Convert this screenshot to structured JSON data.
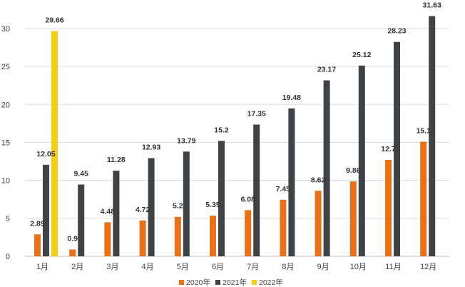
{
  "chart_data": {
    "type": "bar",
    "title": "",
    "xlabel": "",
    "ylabel": "",
    "categories": [
      "1月",
      "2月",
      "3月",
      "4月",
      "5月",
      "6月",
      "7月",
      "8月",
      "9月",
      "10月",
      "11月",
      "12月"
    ],
    "series": [
      {
        "name": "2020年",
        "color": "#e8711a",
        "values": [
          2.89,
          0.9,
          4.48,
          4.72,
          5.2,
          5.35,
          6.08,
          7.45,
          8.62,
          9.86,
          12.7,
          15.1
        ],
        "labels": [
          "2.89",
          "0.9",
          "4.48",
          "4.72",
          "5.2",
          "5.35",
          "6.08",
          "7.45",
          "8.62",
          "9.86",
          "12.7",
          "15.1"
        ]
      },
      {
        "name": "2021年",
        "color": "#404346",
        "values": [
          12.05,
          9.45,
          11.28,
          12.93,
          13.79,
          15.2,
          17.35,
          19.48,
          23.17,
          25.12,
          28.23,
          31.63
        ],
        "labels": [
          "12.05",
          "9.45",
          "11.28",
          "12.93",
          "13.79",
          "15.2",
          "17.35",
          "19.48",
          "23.17",
          "25.12",
          "28.23",
          "31.63"
        ]
      },
      {
        "name": "2022年",
        "color": "#f5cd17",
        "values": [
          29.66,
          null,
          null,
          null,
          null,
          null,
          null,
          null,
          null,
          null,
          null,
          null
        ],
        "labels": [
          "29.66",
          "",
          "",
          "",
          "",
          "",
          "",
          "",
          "",
          "",
          "",
          ""
        ]
      }
    ],
    "ylim": [
      0,
      33
    ],
    "yticks": [
      0,
      5,
      10,
      15,
      20,
      25,
      30
    ],
    "grid": true,
    "legend_position": "bottom"
  }
}
